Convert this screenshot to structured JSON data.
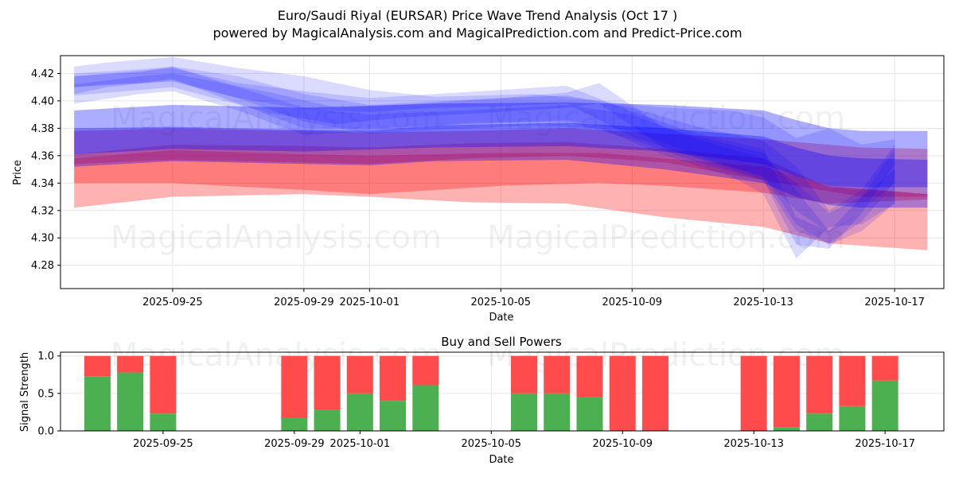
{
  "header": {
    "title": "Euro/Saudi Riyal (EURSAR) Price Wave Trend Analysis (Oct 17 )",
    "subtitle": "powered by MagicalAnalysis.com and MagicalPrediction.com and Predict-Price.com"
  },
  "watermarks": [
    "MagicalAnalysis.com",
    "MagicalPrediction.com"
  ],
  "colors": {
    "blue": "#0000ff",
    "red": "#ff0000",
    "purple": "#7b1fa2",
    "green": "#4caf50",
    "sell_red": "#ff4b4b"
  },
  "chart_data": [
    {
      "type": "area",
      "title": "",
      "xlabel": "Date",
      "ylabel": "Price",
      "xlim": [
        "2025-09-21T14:00",
        "2025-10-18T12:00"
      ],
      "ylim": [
        4.263,
        4.433
      ],
      "xticks": [
        "2025-09-25",
        "2025-09-29",
        "2025-10-01",
        "2025-10-05",
        "2025-10-09",
        "2025-10-13",
        "2025-10-17"
      ],
      "yticks": [
        4.28,
        4.3,
        4.32,
        4.34,
        4.36,
        4.38,
        4.4,
        4.42
      ],
      "grid": true,
      "blue_bands": [
        {
          "x": [
            "2025-09-22",
            "2025-09-25",
            "2025-09-29",
            "2025-10-03",
            "2025-10-07",
            "2025-10-10",
            "2025-10-13",
            "2025-10-14",
            "2025-10-15",
            "2025-10-16",
            "2025-10-18"
          ],
          "upper": [
            4.393,
            4.397,
            4.395,
            4.398,
            4.399,
            4.397,
            4.393,
            4.386,
            4.38,
            4.378,
            4.378
          ],
          "lower": [
            4.361,
            4.365,
            4.363,
            4.366,
            4.367,
            4.363,
            4.354,
            4.345,
            4.338,
            4.337,
            4.337
          ]
        },
        {
          "x": [
            "2025-09-22",
            "2025-09-25",
            "2025-09-29",
            "2025-10-01",
            "2025-10-03",
            "2025-10-07",
            "2025-10-10",
            "2025-10-13",
            "2025-10-14",
            "2025-10-15",
            "2025-10-16",
            "2025-10-18"
          ],
          "upper": [
            4.38,
            4.381,
            4.379,
            4.378,
            4.382,
            4.384,
            4.38,
            4.374,
            4.366,
            4.36,
            4.358,
            4.357
          ],
          "lower": [
            4.352,
            4.356,
            4.354,
            4.353,
            4.356,
            4.357,
            4.35,
            4.34,
            4.33,
            4.324,
            4.322,
            4.322
          ]
        },
        {
          "x": [
            "2025-09-22",
            "2025-09-23",
            "2025-09-25",
            "2025-09-27",
            "2025-09-29",
            "2025-10-01",
            "2025-10-03",
            "2025-10-06",
            "2025-10-08",
            "2025-10-10",
            "2025-10-12",
            "2025-10-13",
            "2025-10-14",
            "2025-10-15",
            "2025-10-16",
            "2025-10-17"
          ],
          "upper": [
            4.425,
            4.428,
            4.432,
            4.424,
            4.418,
            4.408,
            4.403,
            4.405,
            4.4,
            4.395,
            4.393,
            4.388,
            4.373,
            4.38,
            4.368,
            4.372
          ],
          "lower": [
            4.405,
            4.41,
            4.415,
            4.402,
            4.385,
            4.376,
            4.379,
            4.382,
            4.38,
            4.36,
            4.345,
            4.332,
            4.285,
            4.308,
            4.31,
            4.325
          ]
        },
        {
          "x": [
            "2025-09-22",
            "2025-09-24",
            "2025-09-25",
            "2025-09-27",
            "2025-09-29",
            "2025-10-01",
            "2025-10-04",
            "2025-10-07",
            "2025-10-09",
            "2025-10-11",
            "2025-10-13",
            "2025-10-14",
            "2025-10-15",
            "2025-10-16",
            "2025-10-17"
          ],
          "upper": [
            4.42,
            4.423,
            4.425,
            4.418,
            4.405,
            4.397,
            4.401,
            4.404,
            4.395,
            4.381,
            4.371,
            4.352,
            4.32,
            4.335,
            4.368
          ],
          "lower": [
            4.398,
            4.405,
            4.407,
            4.393,
            4.375,
            4.378,
            4.384,
            4.385,
            4.372,
            4.355,
            4.342,
            4.305,
            4.296,
            4.312,
            4.34
          ]
        },
        {
          "x": [
            "2025-09-22",
            "2025-09-23",
            "2025-09-25",
            "2025-09-27",
            "2025-09-29",
            "2025-10-01",
            "2025-10-03",
            "2025-10-05",
            "2025-10-07",
            "2025-10-09",
            "2025-10-11",
            "2025-10-13",
            "2025-10-14",
            "2025-10-15",
            "2025-10-16",
            "2025-10-17"
          ],
          "upper": [
            4.418,
            4.42,
            4.424,
            4.413,
            4.407,
            4.402,
            4.405,
            4.408,
            4.411,
            4.392,
            4.376,
            4.365,
            4.315,
            4.305,
            4.33,
            4.365
          ],
          "lower": [
            4.41,
            4.412,
            4.414,
            4.402,
            4.394,
            4.392,
            4.395,
            4.396,
            4.398,
            4.374,
            4.358,
            4.342,
            4.295,
            4.292,
            4.318,
            4.354
          ]
        },
        {
          "x": [
            "2025-09-22",
            "2025-09-24",
            "2025-09-25",
            "2025-09-28",
            "2025-09-30",
            "2025-10-02",
            "2025-10-05",
            "2025-10-07",
            "2025-10-08",
            "2025-10-10",
            "2025-10-13",
            "2025-10-14",
            "2025-10-15",
            "2025-10-16",
            "2025-10-17"
          ],
          "upper": [
            4.412,
            4.418,
            4.42,
            4.406,
            4.395,
            4.397,
            4.402,
            4.406,
            4.413,
            4.38,
            4.362,
            4.335,
            4.305,
            4.318,
            4.338
          ],
          "lower": [
            4.404,
            4.408,
            4.41,
            4.391,
            4.383,
            4.388,
            4.392,
            4.395,
            4.398,
            4.365,
            4.345,
            4.31,
            4.295,
            4.305,
            4.325
          ]
        },
        {
          "x": [
            "2025-09-22",
            "2025-09-24",
            "2025-09-25",
            "2025-09-27",
            "2025-09-29",
            "2025-10-01",
            "2025-10-04",
            "2025-10-07",
            "2025-10-09",
            "2025-10-11",
            "2025-10-13",
            "2025-10-14",
            "2025-10-15",
            "2025-10-16",
            "2025-10-17"
          ],
          "upper": [
            4.418,
            4.421,
            4.425,
            4.41,
            4.395,
            4.39,
            4.393,
            4.397,
            4.39,
            4.372,
            4.358,
            4.34,
            4.318,
            4.33,
            4.35
          ],
          "lower": [
            4.41,
            4.413,
            4.416,
            4.398,
            4.38,
            4.38,
            4.383,
            4.386,
            4.378,
            4.36,
            4.344,
            4.32,
            4.304,
            4.318,
            4.34
          ]
        }
      ],
      "red_bands": [
        {
          "x": [
            "2025-09-22",
            "2025-09-25",
            "2025-09-29",
            "2025-10-01",
            "2025-10-04",
            "2025-10-07",
            "2025-10-10",
            "2025-10-13",
            "2025-10-15",
            "2025-10-18"
          ],
          "upper": [
            4.361,
            4.368,
            4.367,
            4.366,
            4.369,
            4.37,
            4.365,
            4.358,
            4.337,
            4.332
          ],
          "lower": [
            4.322,
            4.33,
            4.332,
            4.33,
            4.326,
            4.325,
            4.315,
            4.308,
            4.296,
            4.291
          ]
        },
        {
          "x": [
            "2025-09-22",
            "2025-09-25",
            "2025-09-29",
            "2025-10-01",
            "2025-10-05",
            "2025-10-08",
            "2025-10-10",
            "2025-10-13",
            "2025-10-15",
            "2025-10-18"
          ],
          "upper": [
            4.358,
            4.364,
            4.361,
            4.36,
            4.362,
            4.362,
            4.358,
            4.352,
            4.338,
            4.332
          ],
          "lower": [
            4.34,
            4.34,
            4.335,
            4.332,
            4.338,
            4.34,
            4.338,
            4.333,
            4.325,
            4.328
          ]
        },
        {
          "x": [
            "2025-09-22",
            "2025-09-25",
            "2025-09-29",
            "2025-10-01",
            "2025-10-04",
            "2025-10-07",
            "2025-10-10",
            "2025-10-13",
            "2025-10-16",
            "2025-10-18"
          ],
          "upper": [
            4.378,
            4.38,
            4.378,
            4.377,
            4.378,
            4.38,
            4.376,
            4.372,
            4.366,
            4.365
          ],
          "lower": [
            4.354,
            4.357,
            4.355,
            4.354,
            4.358,
            4.36,
            4.355,
            4.342,
            4.33,
            4.33
          ]
        }
      ]
    },
    {
      "type": "bar",
      "title": "Buy and Sell Powers",
      "xlabel": "Date",
      "ylabel": "Signal Strength",
      "ylim": [
        0,
        1.05
      ],
      "yticks": [
        "0.0",
        "0.5",
        "1.0"
      ],
      "xticks": [
        "2025-09-25",
        "2025-09-29",
        "2025-10-01",
        "2025-10-05",
        "2025-10-09",
        "2025-10-13",
        "2025-10-17"
      ],
      "grid": true,
      "dates": [
        "2025-09-23",
        "2025-09-24",
        "2025-09-25",
        "2025-09-29",
        "2025-09-30",
        "2025-10-01",
        "2025-10-02",
        "2025-10-03",
        "2025-10-06",
        "2025-10-07",
        "2025-10-08",
        "2025-10-09",
        "2025-10-10",
        "2025-10-13",
        "2025-10-14",
        "2025-10-15",
        "2025-10-16",
        "2025-10-17"
      ],
      "buy": [
        0.73,
        0.78,
        0.23,
        0.17,
        0.28,
        0.5,
        0.4,
        0.61,
        0.5,
        0.5,
        0.45,
        0.0,
        0.0,
        0.0,
        0.05,
        0.23,
        0.33,
        0.67
      ]
    }
  ]
}
